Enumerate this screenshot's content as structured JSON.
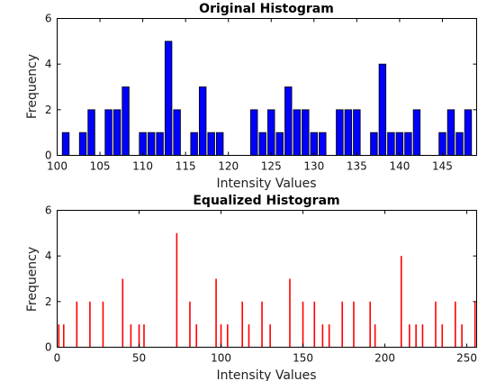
{
  "chart_data": [
    {
      "type": "bar",
      "title": "Original Histogram",
      "xlabel": "Intensity Values",
      "ylabel": "Frequency",
      "xlim": [
        100,
        149
      ],
      "ylim": [
        0,
        6
      ],
      "xticks": [
        100,
        105,
        110,
        115,
        120,
        125,
        130,
        135,
        140,
        145
      ],
      "yticks": [
        0,
        2,
        4,
        6
      ],
      "bar_color": "#0000ff",
      "edge_color": "#000000",
      "x": [
        101,
        103,
        104,
        106,
        107,
        108,
        110,
        111,
        112,
        113,
        114,
        116,
        117,
        118,
        119,
        123,
        124,
        125,
        126,
        127,
        128,
        129,
        130,
        131,
        133,
        134,
        135,
        137,
        138,
        139,
        140,
        141,
        142,
        145,
        146,
        147,
        148
      ],
      "values": [
        1,
        1,
        2,
        2,
        2,
        3,
        1,
        1,
        1,
        5,
        2,
        1,
        3,
        1,
        1,
        2,
        1,
        2,
        1,
        3,
        2,
        2,
        1,
        1,
        2,
        2,
        2,
        1,
        4,
        1,
        1,
        1,
        2,
        1,
        2,
        1,
        2
      ]
    },
    {
      "type": "bar",
      "title": "Equalized Histogram",
      "xlabel": "Intensity Values",
      "ylabel": "Frequency",
      "xlim": [
        0,
        256
      ],
      "ylim": [
        0,
        6
      ],
      "xticks": [
        0,
        50,
        100,
        150,
        200,
        250
      ],
      "yticks": [
        0,
        2,
        4,
        6
      ],
      "bar_color": "#ff0000",
      "x": [
        1,
        4,
        12,
        20,
        28,
        40,
        45,
        50,
        53,
        73,
        81,
        85,
        97,
        100,
        104,
        113,
        117,
        125,
        130,
        142,
        150,
        157,
        162,
        166,
        174,
        181,
        191,
        194,
        210,
        215,
        219,
        223,
        231,
        235,
        243,
        247,
        255
      ],
      "values": [
        1,
        1,
        2,
        2,
        2,
        3,
        1,
        1,
        1,
        5,
        2,
        1,
        3,
        1,
        1,
        2,
        1,
        2,
        1,
        3,
        2,
        2,
        1,
        1,
        2,
        2,
        2,
        1,
        4,
        1,
        1,
        1,
        2,
        1,
        2,
        1,
        2
      ]
    }
  ]
}
